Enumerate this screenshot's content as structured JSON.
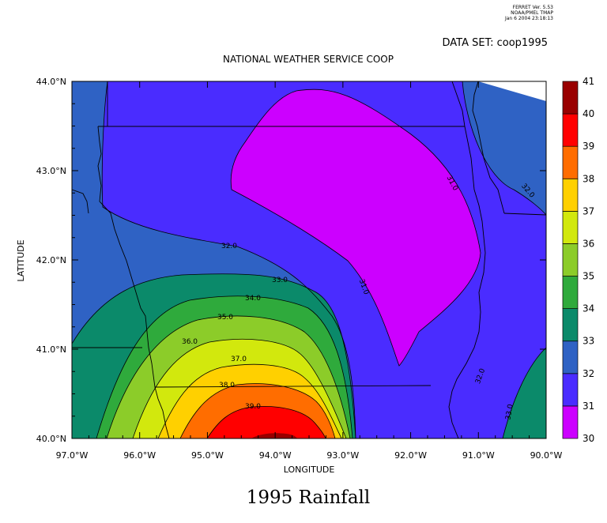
{
  "header": {
    "line1": "FERRET Ver. 5.53",
    "line2": "NOAA/PMEL TMAP",
    "line3": "Jan  6 2004 23:18:13"
  },
  "dataset_label": "DATA SET: coop1995",
  "chart_data": {
    "type": "heatmap",
    "subtype": "filled-contour map",
    "title": "NATIONAL WEATHER SERVICE COOP",
    "xlabel": "LONGITUDE",
    "ylabel": "LATITUDE",
    "xlim": [
      -97.0,
      -90.0
    ],
    "ylim": [
      40.0,
      44.0
    ],
    "x_ticks": [
      "97.0°W",
      "96.0°W",
      "95.0°W",
      "94.0°W",
      "93.0°W",
      "92.0°W",
      "91.0°W",
      "90.0°W"
    ],
    "y_ticks": [
      "40.0°N",
      "41.0°N",
      "42.0°N",
      "43.0°N",
      "44.0°N"
    ],
    "colorbar": {
      "levels": [
        30,
        31,
        32,
        33,
        34,
        35,
        36,
        37,
        38,
        39,
        40,
        41
      ],
      "colors": [
        "#cc00ff",
        "#4a2cff",
        "#2f62c4",
        "#0b8a6a",
        "#2faa3c",
        "#8ccc29",
        "#d2e80d",
        "#ffd000",
        "#ff6d00",
        "#ff0000",
        "#990000"
      ]
    },
    "contour_labels": [
      "31.0",
      "31.0",
      "32.0",
      "32.0",
      "32.0",
      "33.0",
      "33.0",
      "34.0",
      "35.0",
      "36.0",
      "37.0",
      "38.0",
      "39.0"
    ],
    "grid": false
  },
  "bottom_title": "1995 Rainfall"
}
